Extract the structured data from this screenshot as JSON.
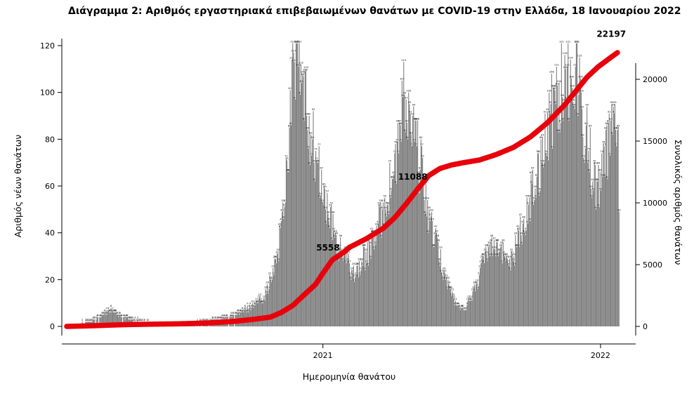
{
  "chart_data": {
    "type": "bar+line",
    "title": "Διάγραμμα 2: Αριθμός εργαστηριακά επιβεβαιωμένων θανάτων με COVID-19 στην Ελλάδα, 18 Ιανουαρίου 2022",
    "xlabel": "Ημερομηνία θανάτου",
    "ylabel_left": "Αριθμός νέων θανάτων",
    "ylabel_right": "Συνολικός αριθμός θανάτων",
    "x_ticks": [
      {
        "label": "2021",
        "f": 0.453
      },
      {
        "label": "2022",
        "f": 0.944
      }
    ],
    "y_left": {
      "ticks": [
        0,
        20,
        40,
        60,
        80,
        100,
        120
      ],
      "max": 120
    },
    "y_right": {
      "ticks": [
        0,
        5000,
        10000,
        15000,
        20000
      ],
      "max": 20000
    },
    "bar_color": "#7f7f7f",
    "bar_label_color": "#2a2a2a",
    "line_color": "#e8000b",
    "annotation_color": "#e8000b",
    "grid": "off",
    "legend": "none",
    "days_total": 688,
    "max_daily_value": 121,
    "notable_bar_peaks": [
      121,
      119,
      100,
      112,
      111,
      109,
      96
    ],
    "daily_deaths_controls": [
      [
        0.0,
        0
      ],
      [
        0.02,
        1
      ],
      [
        0.04,
        2
      ],
      [
        0.06,
        4
      ],
      [
        0.075,
        7
      ],
      [
        0.09,
        5
      ],
      [
        0.11,
        3
      ],
      [
        0.13,
        2
      ],
      [
        0.16,
        1
      ],
      [
        0.19,
        1
      ],
      [
        0.22,
        1
      ],
      [
        0.25,
        2
      ],
      [
        0.27,
        3
      ],
      [
        0.29,
        4
      ],
      [
        0.31,
        6
      ],
      [
        0.33,
        9
      ],
      [
        0.35,
        13
      ],
      [
        0.365,
        22
      ],
      [
        0.375,
        35
      ],
      [
        0.385,
        55
      ],
      [
        0.395,
        90
      ],
      [
        0.403,
        118
      ],
      [
        0.41,
        112
      ],
      [
        0.418,
        98
      ],
      [
        0.428,
        88
      ],
      [
        0.44,
        72
      ],
      [
        0.45,
        60
      ],
      [
        0.46,
        50
      ],
      [
        0.47,
        42
      ],
      [
        0.48,
        34
      ],
      [
        0.49,
        30
      ],
      [
        0.5,
        26
      ],
      [
        0.51,
        23
      ],
      [
        0.52,
        26
      ],
      [
        0.53,
        31
      ],
      [
        0.54,
        35
      ],
      [
        0.55,
        41
      ],
      [
        0.56,
        50
      ],
      [
        0.57,
        58
      ],
      [
        0.578,
        66
      ],
      [
        0.586,
        74
      ],
      [
        0.593,
        97
      ],
      [
        0.6,
        92
      ],
      [
        0.61,
        84
      ],
      [
        0.62,
        76
      ],
      [
        0.63,
        62
      ],
      [
        0.64,
        48
      ],
      [
        0.65,
        38
      ],
      [
        0.66,
        29
      ],
      [
        0.67,
        21
      ],
      [
        0.68,
        14
      ],
      [
        0.69,
        9
      ],
      [
        0.7,
        7
      ],
      [
        0.71,
        10
      ],
      [
        0.72,
        15
      ],
      [
        0.73,
        22
      ],
      [
        0.74,
        30
      ],
      [
        0.75,
        37
      ],
      [
        0.76,
        36
      ],
      [
        0.77,
        31
      ],
      [
        0.78,
        28
      ],
      [
        0.79,
        31
      ],
      [
        0.8,
        38
      ],
      [
        0.81,
        46
      ],
      [
        0.82,
        54
      ],
      [
        0.83,
        64
      ],
      [
        0.845,
        80
      ],
      [
        0.855,
        92
      ],
      [
        0.868,
        100
      ],
      [
        0.88,
        106
      ],
      [
        0.895,
        110
      ],
      [
        0.901,
        112
      ],
      [
        0.908,
        100
      ],
      [
        0.915,
        88
      ],
      [
        0.925,
        74
      ],
      [
        0.932,
        63
      ],
      [
        0.938,
        58
      ],
      [
        0.945,
        62
      ],
      [
        0.952,
        70
      ],
      [
        0.958,
        78
      ],
      [
        0.964,
        86
      ],
      [
        0.97,
        94
      ],
      [
        0.974,
        96
      ],
      [
        0.977,
        40
      ]
    ],
    "cumulative_controls": [
      [
        0.0,
        0
      ],
      [
        0.05,
        60
      ],
      [
        0.1,
        140
      ],
      [
        0.15,
        180
      ],
      [
        0.2,
        210
      ],
      [
        0.25,
        280
      ],
      [
        0.3,
        420
      ],
      [
        0.33,
        570
      ],
      [
        0.36,
        750
      ],
      [
        0.38,
        1140
      ],
      [
        0.4,
        1700
      ],
      [
        0.42,
        2560
      ],
      [
        0.44,
        3400
      ],
      [
        0.453,
        4300
      ],
      [
        0.47,
        5400
      ],
      [
        0.49,
        6000
      ],
      [
        0.5,
        6400
      ],
      [
        0.53,
        7100
      ],
      [
        0.56,
        7950
      ],
      [
        0.58,
        8800
      ],
      [
        0.6,
        9900
      ],
      [
        0.62,
        11080
      ],
      [
        0.64,
        12200
      ],
      [
        0.66,
        12780
      ],
      [
        0.68,
        13060
      ],
      [
        0.7,
        13240
      ],
      [
        0.73,
        13470
      ],
      [
        0.76,
        13920
      ],
      [
        0.79,
        14490
      ],
      [
        0.82,
        15340
      ],
      [
        0.85,
        16480
      ],
      [
        0.88,
        17900
      ],
      [
        0.9,
        19030
      ],
      [
        0.92,
        20170
      ],
      [
        0.94,
        21020
      ],
      [
        0.96,
        21700
      ],
      [
        0.975,
        22197
      ]
    ],
    "annotations": [
      {
        "text": "5558",
        "f": 0.462,
        "value": 5558,
        "dy": -10
      },
      {
        "text": "11088",
        "f": 0.612,
        "value": 11088,
        "dy": -14
      },
      {
        "text": "22197",
        "f": 0.963,
        "value": 22197,
        "dy": -22
      }
    ]
  }
}
